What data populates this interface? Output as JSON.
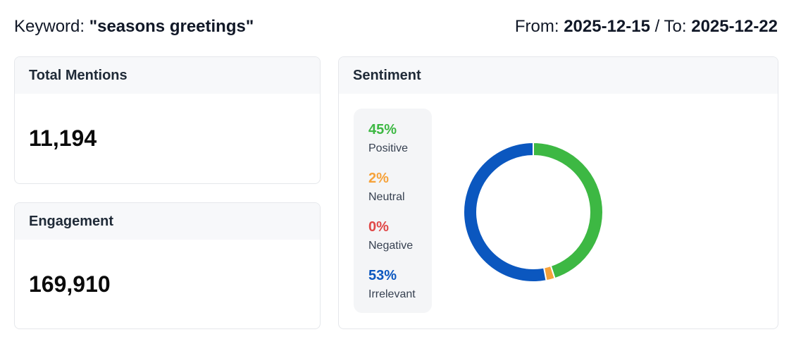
{
  "header": {
    "keyword_prefix": "Keyword: ",
    "keyword": "\"seasons greetings\"",
    "from_prefix": "From: ",
    "from_date": "2025-12-15",
    "to_prefix": " / To: ",
    "to_date": "2025-12-22"
  },
  "mentions": {
    "title": "Total Mentions",
    "value": "11,194"
  },
  "engagement": {
    "title": "Engagement",
    "value": "169,910"
  },
  "sentiment": {
    "title": "Sentiment",
    "items": [
      {
        "pct": "45%",
        "label": "Positive",
        "value": 45,
        "color": "#3db843"
      },
      {
        "pct": "2%",
        "label": "Neutral",
        "value": 2,
        "color": "#f6a23a"
      },
      {
        "pct": "0%",
        "label": "Negative",
        "value": 0,
        "color": "#e04848"
      },
      {
        "pct": "53%",
        "label": "Irrelevant",
        "value": 53,
        "color": "#0b57bf"
      }
    ]
  }
}
